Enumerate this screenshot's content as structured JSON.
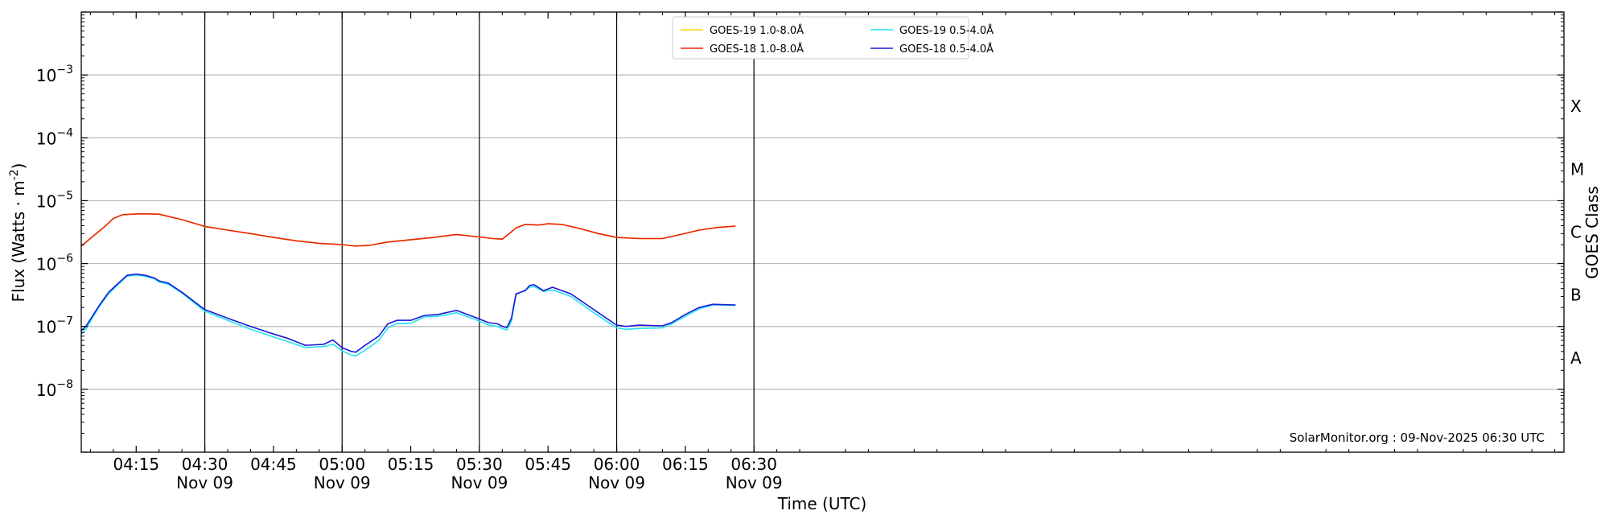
{
  "chart_data": {
    "type": "line",
    "xlabel": "Time (UTC)",
    "ylabel_main": "Flux (Watts · m",
    "ylabel_exp": "-2",
    "ylabel_close": ")",
    "ylabel_right": "GOES Class",
    "watermark": "SolarMonitor.org : 09-Nov-2025 06:30 UTC",
    "yscale": "log",
    "ylim": [
      1e-09,
      0.01
    ],
    "xlim_minutes_utc": [
      243,
      567
    ],
    "x_ticks": [
      {
        "minute": 255,
        "time": "04:15",
        "date": ""
      },
      {
        "minute": 270,
        "time": "04:30",
        "date": "Nov 09"
      },
      {
        "minute": 285,
        "time": "04:45",
        "date": ""
      },
      {
        "minute": 300,
        "time": "05:00",
        "date": "Nov 09"
      },
      {
        "minute": 315,
        "time": "05:15",
        "date": ""
      },
      {
        "minute": 330,
        "time": "05:30",
        "date": "Nov 09"
      },
      {
        "minute": 345,
        "time": "05:45",
        "date": ""
      },
      {
        "minute": 360,
        "time": "06:00",
        "date": "Nov 09"
      },
      {
        "minute": 375,
        "time": "06:15",
        "date": ""
      },
      {
        "minute": 390,
        "time": "06:30",
        "date": "Nov 09"
      }
    ],
    "y_ticks": [
      {
        "exp": -8,
        "base": "10",
        "sup": "−8"
      },
      {
        "exp": -7,
        "base": "10",
        "sup": "−7"
      },
      {
        "exp": -6,
        "base": "10",
        "sup": "−6"
      },
      {
        "exp": -5,
        "base": "10",
        "sup": "−5"
      },
      {
        "exp": -4,
        "base": "10",
        "sup": "−4"
      },
      {
        "exp": -3,
        "base": "10",
        "sup": "−3"
      }
    ],
    "goes_classes": [
      {
        "label": "X",
        "exp": -3.5
      },
      {
        "label": "M",
        "exp": -4.5
      },
      {
        "label": "C",
        "exp": -5.5
      },
      {
        "label": "B",
        "exp": -6.5
      },
      {
        "label": "A",
        "exp": -7.5
      }
    ],
    "vertical_lines_minutes": [
      270,
      300,
      330,
      360,
      390
    ],
    "legend": {
      "placement": "top-center",
      "columns": 2
    },
    "series": [
      {
        "name": "GOES-19 1.0-8.0Å",
        "color": "#ffd700",
        "x": [
          243,
          248,
          250,
          252,
          256,
          260,
          265,
          270,
          275,
          280,
          285,
          290,
          295,
          300,
          303,
          306,
          310,
          315,
          320,
          325,
          330,
          333,
          335,
          337,
          338,
          340,
          343,
          345,
          348,
          352,
          356,
          360,
          365,
          370,
          374,
          378,
          382,
          386
        ],
        "values": [
          1.9e-06,
          3.8e-06,
          5.2e-06,
          6e-06,
          6.2e-06,
          6.1e-06,
          5e-06,
          3.9e-06,
          3.4e-06,
          3e-06,
          2.6e-06,
          2.3e-06,
          2.1e-06,
          2e-06,
          1.9e-06,
          1.95e-06,
          2.2e-06,
          2.4e-06,
          2.6e-06,
          2.9e-06,
          2.65e-06,
          2.5e-06,
          2.45e-06,
          3.2e-06,
          3.7e-06,
          4.2e-06,
          4.1e-06,
          4.3e-06,
          4.2e-06,
          3.6e-06,
          3e-06,
          2.6e-06,
          2.5e-06,
          2.5e-06,
          2.9e-06,
          3.4e-06,
          3.75e-06,
          3.95e-06
        ]
      },
      {
        "name": "GOES-18 1.0-8.0Å",
        "color": "#e8240a",
        "x": [
          243,
          248,
          250,
          252,
          256,
          260,
          265,
          270,
          275,
          280,
          285,
          290,
          295,
          300,
          303,
          306,
          310,
          315,
          320,
          325,
          330,
          333,
          335,
          337,
          338,
          340,
          343,
          345,
          348,
          352,
          356,
          360,
          365,
          370,
          374,
          378,
          382,
          386
        ],
        "values": [
          1.9e-06,
          3.8e-06,
          5.2e-06,
          6e-06,
          6.2e-06,
          6.1e-06,
          5e-06,
          3.9e-06,
          3.4e-06,
          3e-06,
          2.6e-06,
          2.3e-06,
          2.1e-06,
          2e-06,
          1.9e-06,
          1.95e-06,
          2.2e-06,
          2.4e-06,
          2.6e-06,
          2.9e-06,
          2.65e-06,
          2.5e-06,
          2.45e-06,
          3.2e-06,
          3.7e-06,
          4.2e-06,
          4.1e-06,
          4.3e-06,
          4.2e-06,
          3.6e-06,
          3e-06,
          2.6e-06,
          2.5e-06,
          2.5e-06,
          2.9e-06,
          3.4e-06,
          3.75e-06,
          3.95e-06
        ]
      },
      {
        "name": "GOES-19 0.5-4.0Å",
        "color": "#22e4f0",
        "x": [
          243,
          244,
          245,
          247,
          249,
          251,
          253,
          255,
          257,
          259,
          260,
          262,
          265,
          270,
          275,
          280,
          284,
          288,
          292,
          296,
          298,
          300,
          302,
          303,
          305,
          306,
          308,
          310,
          312,
          315,
          318,
          321,
          325,
          329,
          332,
          334,
          335,
          336,
          337,
          338,
          340,
          341,
          342,
          344,
          346,
          350,
          355,
          360,
          362,
          365,
          370,
          372,
          375,
          378,
          381,
          386
        ],
        "values": [
          7.5e-08,
          9e-08,
          1.2e-07,
          2.1e-07,
          3.3e-07,
          4.6e-07,
          6.3e-07,
          6.6e-07,
          6.3e-07,
          5.7e-07,
          5.1e-07,
          4.7e-07,
          3.4e-07,
          1.75e-07,
          1.25e-07,
          9e-08,
          7.2e-08,
          5.8e-08,
          4.6e-08,
          4.8e-08,
          5.2e-08,
          4.1e-08,
          3.5e-08,
          3.4e-08,
          4.2e-08,
          4.7e-08,
          6e-08,
          9.5e-08,
          1.12e-07,
          1.12e-07,
          1.42e-07,
          1.45e-07,
          1.65e-07,
          1.3e-07,
          1.05e-07,
          1e-07,
          9.2e-08,
          8.8e-08,
          1.2e-07,
          3.2e-07,
          3.8e-07,
          4.2e-07,
          4.3e-07,
          3.6e-07,
          3.8e-07,
          3e-07,
          1.65e-07,
          9.5e-08,
          9e-08,
          9.3e-08,
          9.5e-08,
          1.1e-07,
          1.45e-07,
          1.9e-07,
          2.2e-07,
          2.15e-07
        ]
      },
      {
        "name": "GOES-18 0.5-4.0Å",
        "color": "#1a1adc",
        "x": [
          243,
          244,
          245,
          247,
          249,
          251,
          253,
          255,
          257,
          259,
          260,
          262,
          265,
          270,
          275,
          280,
          284,
          288,
          292,
          296,
          298,
          300,
          302,
          303,
          305,
          306,
          308,
          310,
          312,
          315,
          318,
          321,
          325,
          329,
          332,
          334,
          335,
          336,
          337,
          338,
          340,
          341,
          342,
          344,
          346,
          350,
          355,
          360,
          362,
          365,
          370,
          372,
          375,
          378,
          381,
          386
        ],
        "values": [
          8.5e-08,
          1e-07,
          1.3e-07,
          2.2e-07,
          3.5e-07,
          4.8e-07,
          6.5e-07,
          6.8e-07,
          6.5e-07,
          5.9e-07,
          5.3e-07,
          4.9e-07,
          3.5e-07,
          1.85e-07,
          1.35e-07,
          1e-07,
          8e-08,
          6.5e-08,
          5e-08,
          5.2e-08,
          6.1e-08,
          4.6e-08,
          4e-08,
          3.9e-08,
          5e-08,
          5.6e-08,
          7e-08,
          1.1e-07,
          1.25e-07,
          1.25e-07,
          1.5e-07,
          1.55e-07,
          1.8e-07,
          1.4e-07,
          1.15e-07,
          1.1e-07,
          1e-07,
          9.6e-08,
          1.35e-07,
          3.3e-07,
          3.7e-07,
          4.5e-07,
          4.6e-07,
          3.7e-07,
          4.2e-07,
          3.3e-07,
          1.85e-07,
          1.05e-07,
          1e-07,
          1.05e-07,
          1.02e-07,
          1.15e-07,
          1.55e-07,
          2e-07,
          2.25e-07,
          2.2e-07
        ]
      }
    ]
  }
}
